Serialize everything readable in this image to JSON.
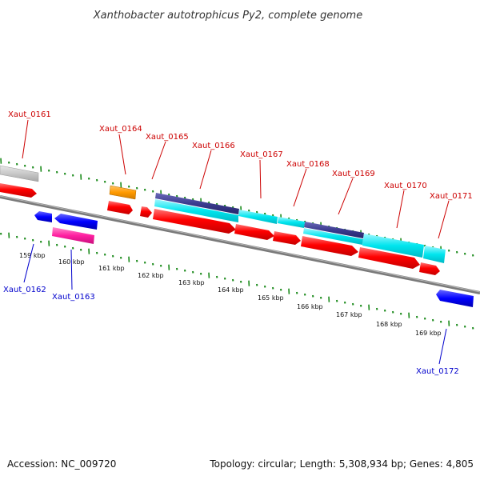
{
  "title": "Xanthobacter autotrophicus Py2, complete genome",
  "footer": {
    "accession": "Accession: NC_009720",
    "stats": "Topology: circular; Length: 5,308,934 bp; Genes: 4,805"
  },
  "colors": {
    "plus_strand_label": "#cc0000",
    "minus_strand_label": "#0000cc",
    "backbone": "#8a8a8a",
    "tick": "#1a8a1a",
    "cds": "#ff0000",
    "rrna_cyan": "#00e5ee",
    "dark_blue": "#3b3b8f",
    "orange": "#ff9a00",
    "magenta": "#ff1fa0",
    "minus_cds": "#0000ff",
    "grey_feature": "#c8c8c8"
  },
  "ruler": {
    "unit": "kbp",
    "labels": [
      "159 kbp",
      "160 kbp",
      "161 kbp",
      "162 kbp",
      "163 kbp",
      "164 kbp",
      "165 kbp",
      "166 kbp",
      "167 kbp",
      "168 kbp",
      "169 kbp"
    ]
  },
  "genes": [
    {
      "id": "Xaut_0161",
      "strand": "+"
    },
    {
      "id": "Xaut_0162",
      "strand": "-"
    },
    {
      "id": "Xaut_0163",
      "strand": "-"
    },
    {
      "id": "Xaut_0164",
      "strand": "+"
    },
    {
      "id": "Xaut_0165",
      "strand": "+"
    },
    {
      "id": "Xaut_0166",
      "strand": "+"
    },
    {
      "id": "Xaut_0167",
      "strand": "+"
    },
    {
      "id": "Xaut_0168",
      "strand": "+"
    },
    {
      "id": "Xaut_0169",
      "strand": "+"
    },
    {
      "id": "Xaut_0170",
      "strand": "+"
    },
    {
      "id": "Xaut_0171",
      "strand": "+"
    },
    {
      "id": "Xaut_0172",
      "strand": "-"
    }
  ]
}
